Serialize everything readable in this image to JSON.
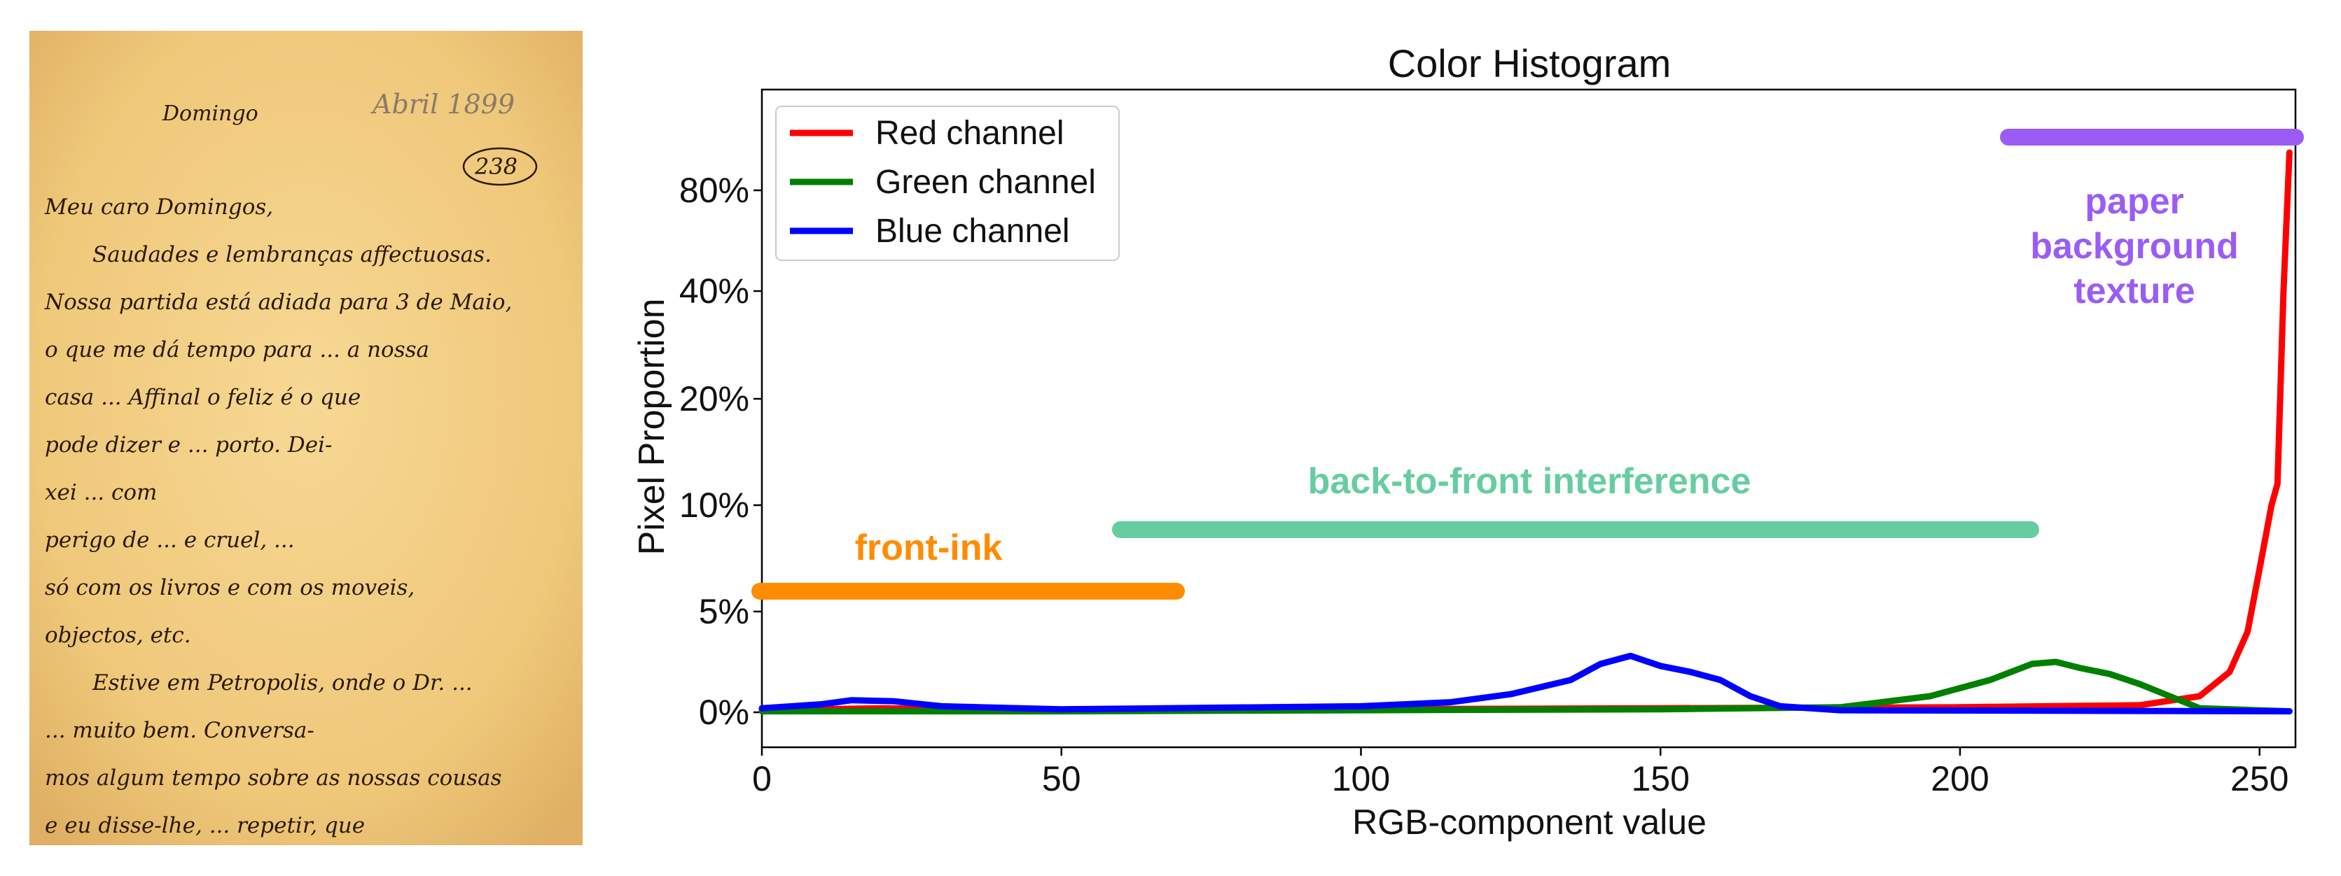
{
  "letter": {
    "header_text": "Domingo",
    "archive_note": "Abril 1899",
    "catalog_number": "238",
    "lines": [
      "Meu caro Domingos,",
      "Saudades e lembranças affectuosas.",
      "Nossa partida está adiada para 3 de Maio,",
      "o que me dá tempo para ... a nossa",
      "casa ... Affinal o feliz é o que",
      "pode dizer e ... porto. Dei-",
      "xei ... com",
      "perigo de ... e cruel, ...",
      "só com os livros e com os moveis,",
      "objectos, etc.",
      "Estive em Petropolis, onde o Dr. ...",
      "... muito bem. Conversa-",
      "mos algum tempo sobre as nossas cousas",
      "e eu disse-lhe, ... repetir, que"
    ]
  },
  "colors": {
    "red": "#ff0000",
    "green": "#008000",
    "blue": "#0000ff",
    "front_ink": "#ff8c00",
    "interference": "#66cda0",
    "paper_texture": "#9b5cf6",
    "paper_bg": "#f3d08a",
    "ink": "#2a1a08"
  },
  "chart_data": {
    "type": "line",
    "title": "Color Histogram",
    "xlabel": "RGB-component value",
    "ylabel": "Pixel Proportion",
    "xlim": [
      0,
      256
    ],
    "x_ticks": [
      0,
      50,
      100,
      150,
      200,
      250
    ],
    "x_tick_labels": [
      "0",
      "50",
      "100",
      "150",
      "200",
      "250"
    ],
    "y_ticks": [
      0,
      5,
      10,
      20,
      40,
      80
    ],
    "y_tick_labels": [
      "0%",
      "5%",
      "10%",
      "20%",
      "40%",
      "80%"
    ],
    "y_scale": "non-linear (ticks 0%, 5%, 10%, 20%, 40%, 80% evenly spaced)",
    "grid": false,
    "legend_position": "top-left",
    "series": [
      {
        "name": "Red channel",
        "color": "#ff0000",
        "points": [
          [
            0,
            0.1
          ],
          [
            20,
            0.2
          ],
          [
            40,
            0.1
          ],
          [
            100,
            0.15
          ],
          [
            150,
            0.2
          ],
          [
            200,
            0.25
          ],
          [
            230,
            0.35
          ],
          [
            240,
            0.8
          ],
          [
            245,
            2
          ],
          [
            248,
            4
          ],
          [
            250,
            7
          ],
          [
            252,
            10
          ],
          [
            253,
            12
          ],
          [
            254,
            40
          ],
          [
            255,
            95
          ]
        ]
      },
      {
        "name": "Green channel",
        "color": "#008000",
        "points": [
          [
            0,
            0.05
          ],
          [
            50,
            0.05
          ],
          [
            100,
            0.1
          ],
          [
            150,
            0.15
          ],
          [
            180,
            0.25
          ],
          [
            195,
            0.8
          ],
          [
            205,
            1.6
          ],
          [
            212,
            2.4
          ],
          [
            216,
            2.5
          ],
          [
            220,
            2.2
          ],
          [
            225,
            1.9
          ],
          [
            230,
            1.4
          ],
          [
            235,
            0.8
          ],
          [
            240,
            0.2
          ],
          [
            255,
            0.05
          ]
        ]
      },
      {
        "name": "Blue channel",
        "color": "#0000ff",
        "points": [
          [
            0,
            0.2
          ],
          [
            10,
            0.4
          ],
          [
            15,
            0.6
          ],
          [
            22,
            0.55
          ],
          [
            30,
            0.3
          ],
          [
            50,
            0.15
          ],
          [
            100,
            0.3
          ],
          [
            115,
            0.5
          ],
          [
            125,
            0.9
          ],
          [
            135,
            1.6
          ],
          [
            140,
            2.4
          ],
          [
            145,
            2.8
          ],
          [
            150,
            2.3
          ],
          [
            155,
            2.0
          ],
          [
            160,
            1.6
          ],
          [
            165,
            0.8
          ],
          [
            170,
            0.3
          ],
          [
            180,
            0.1
          ],
          [
            255,
            0.05
          ]
        ]
      }
    ],
    "annotations": [
      {
        "label": "front-ink",
        "color": "#ff8c00",
        "x_range": [
          0,
          70
        ],
        "y": 6
      },
      {
        "label": "back-to-front interference",
        "color": "#66cda0",
        "x_range": [
          59,
          212
        ],
        "y": 8.8
      },
      {
        "label": "paper\nbackground\ntexture",
        "color": "#9b5cf6",
        "x_range": [
          208,
          256
        ],
        "y": 90
      }
    ]
  }
}
